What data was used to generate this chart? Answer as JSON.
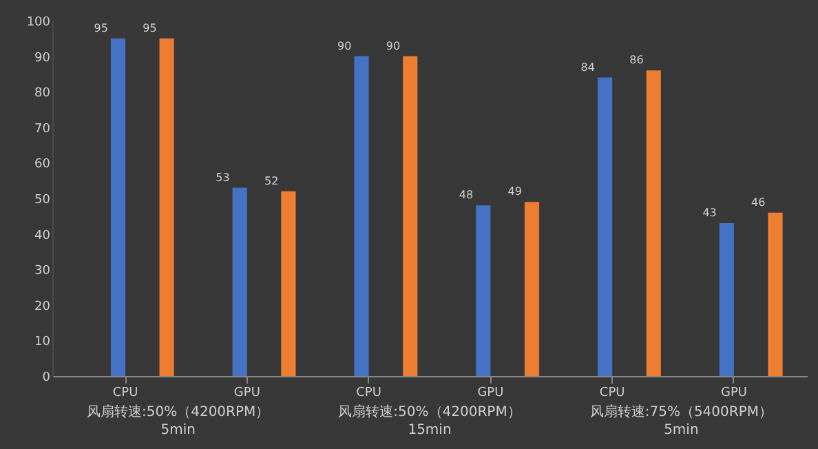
{
  "chart_data": {
    "type": "bar",
    "categories": [
      "CPU",
      "GPU",
      "CPU",
      "GPU",
      "CPU",
      "GPU"
    ],
    "series": [
      {
        "color": "#4472c4",
        "values": [
          95,
          53,
          90,
          48,
          84,
          43
        ]
      },
      {
        "color": "#ed7d31",
        "values": [
          95,
          52,
          90,
          49,
          86,
          46
        ]
      }
    ],
    "ylim": [
      0,
      100
    ],
    "yticks": [
      0,
      10,
      20,
      30,
      40,
      50,
      60,
      70,
      80,
      90,
      100
    ],
    "grid": false,
    "data_labels": true,
    "annotations": [
      "风扇转速:50%（4200RPM）",
      "5min",
      "风扇转速:50%（4200RPM）",
      "15min",
      "风扇转速:75%（5400RPM）",
      "5min"
    ]
  }
}
